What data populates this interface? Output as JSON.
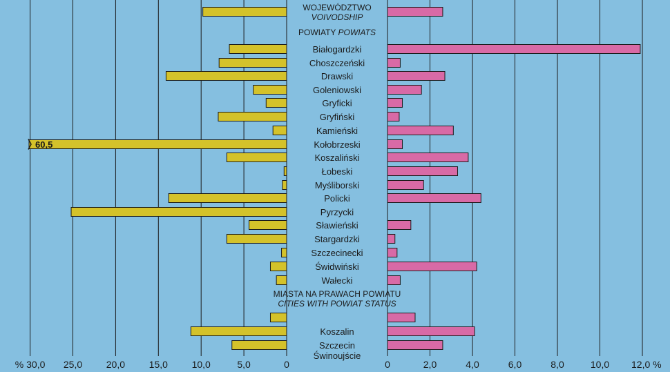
{
  "chart_data": {
    "type": "bar",
    "colors": {
      "background": "#85bfe0",
      "left_bar": "#d4c22a",
      "right_bar": "#d86aa6",
      "grid": "#1a1a1a"
    },
    "left_axis": {
      "ticks": [
        "% 30,0",
        "25,0",
        "20,0",
        "15,0",
        "10,0",
        "5,0",
        "0"
      ],
      "range": [
        30,
        0
      ]
    },
    "right_axis": {
      "ticks": [
        "0",
        "2,0",
        "4,0",
        "6,0",
        "8,0",
        "10,0",
        "12,0 %"
      ],
      "range": [
        0,
        12
      ]
    },
    "rows": [
      {
        "label": "WOJEWÓDZTWO",
        "label2": "VOIVODSHIP",
        "style": "header",
        "left": 9.8,
        "right": 2.6
      },
      {
        "label": "POWIATY",
        "label2": "POWIATS",
        "style": "inline",
        "left": null,
        "right": null
      },
      {
        "label": "Białogardzki",
        "left": 6.7,
        "right": 11.9
      },
      {
        "label": "Choszczeński",
        "left": 7.9,
        "right": 0.6
      },
      {
        "label": "Drawski",
        "left": 14.1,
        "right": 2.7
      },
      {
        "label": "Goleniowski",
        "left": 3.9,
        "right": 1.6
      },
      {
        "label": "Gryficki",
        "left": 2.4,
        "right": 0.7
      },
      {
        "label": "Gryfiński",
        "left": 8.0,
        "right": 0.55
      },
      {
        "label": "Kamieński",
        "left": 1.6,
        "right": 3.1
      },
      {
        "label": "Kołobrzeski",
        "left": 60.5,
        "right": 0.7,
        "overflow_label": "60,5"
      },
      {
        "label": "Koszaliński",
        "left": 7.0,
        "right": 3.8
      },
      {
        "label": "Łobeski",
        "left": 0.3,
        "right": 3.3
      },
      {
        "label": "Myśliborski",
        "left": 0.5,
        "right": 1.7
      },
      {
        "label": "Policki",
        "left": 13.8,
        "right": 4.4
      },
      {
        "label": "Pyrzycki",
        "left": 25.2,
        "right": null
      },
      {
        "label": "Sławieński",
        "left": 4.4,
        "right": 1.1
      },
      {
        "label": "Stargardzki",
        "left": 7.0,
        "right": 0.35
      },
      {
        "label": "Szczecinecki",
        "left": 0.6,
        "right": 0.45
      },
      {
        "label": "Świdwiński",
        "left": 1.9,
        "right": 4.2
      },
      {
        "label": "Wałecki",
        "left": 1.2,
        "right": 0.6
      },
      {
        "label": "MIASTA NA PRAWACH POWIATU",
        "label2": "CITIES WITH POWIAT STATUS",
        "style": "header",
        "left": null,
        "right": null
      },
      {
        "label": "",
        "left": 1.9,
        "right": 1.3
      },
      {
        "label": "Koszalin",
        "left": 11.2,
        "right": 4.1
      },
      {
        "label": "Szczecin",
        "left": 6.4,
        "right": 2.6
      },
      {
        "label": "Świnoujście",
        "left": null,
        "right": null
      }
    ]
  }
}
